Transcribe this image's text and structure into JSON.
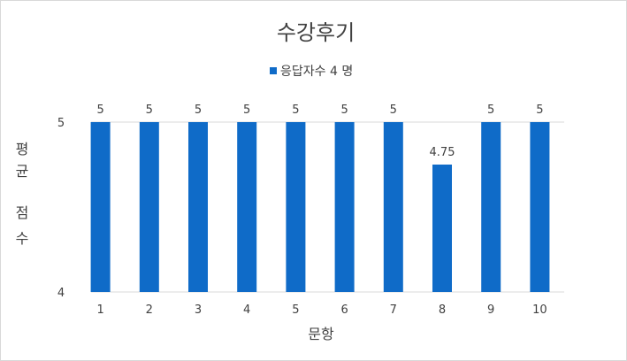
{
  "chart_data": {
    "type": "bar",
    "title": "수강후기",
    "legend": {
      "label": "응답자수 4 명",
      "placement": "top",
      "color": "#0F6BC8"
    },
    "categories": [
      "1",
      "2",
      "3",
      "4",
      "5",
      "6",
      "7",
      "8",
      "9",
      "10"
    ],
    "series": [
      {
        "name": "응답자수 4 명",
        "values": [
          5,
          5,
          5,
          5,
          5,
          5,
          5,
          4.75,
          5,
          5
        ],
        "color": "#0F6BC8"
      }
    ],
    "data_labels": [
      "5",
      "5",
      "5",
      "5",
      "5",
      "5",
      "5",
      "4.75",
      "5",
      "5"
    ],
    "xlabel": "문항",
    "ylabel": [
      "평",
      "균",
      "점",
      "수"
    ],
    "ylim": [
      4,
      5
    ],
    "yticks": [
      "5",
      "4"
    ],
    "grid": true
  }
}
